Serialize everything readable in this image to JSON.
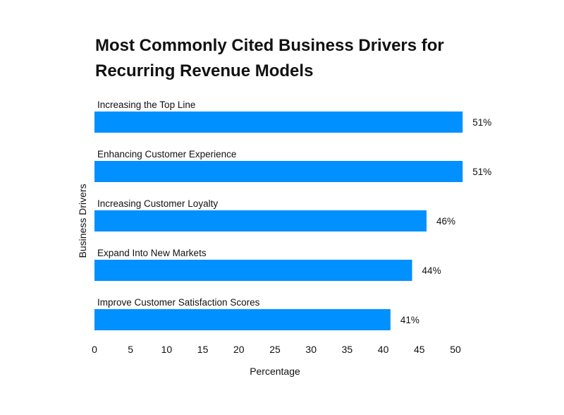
{
  "chart_data": {
    "type": "bar",
    "orientation": "horizontal",
    "title": "Most Commonly Cited Business Drivers for Recurring Revenue Models",
    "title_lines": [
      "Most Commonly Cited Business Drivers for",
      "Recurring Revenue Models"
    ],
    "categories": [
      "Increasing the Top Line",
      "Enhancing Customer Experience",
      "Increasing Customer Loyalty",
      "Expand Into New Markets",
      "Improve Customer Satisfaction Scores"
    ],
    "values": [
      51,
      51,
      46,
      44,
      41
    ],
    "data_labels": [
      "51%",
      "51%",
      "46%",
      "44%",
      "41%"
    ],
    "xlabel": "Percentage",
    "ylabel": "Business Drivers",
    "xlim": [
      0,
      50
    ],
    "xticks": [
      "0",
      "5",
      "10",
      "15",
      "20",
      "25",
      "30",
      "35",
      "40",
      "45",
      "50"
    ],
    "grid": false,
    "bar_color": "#0090FF"
  }
}
